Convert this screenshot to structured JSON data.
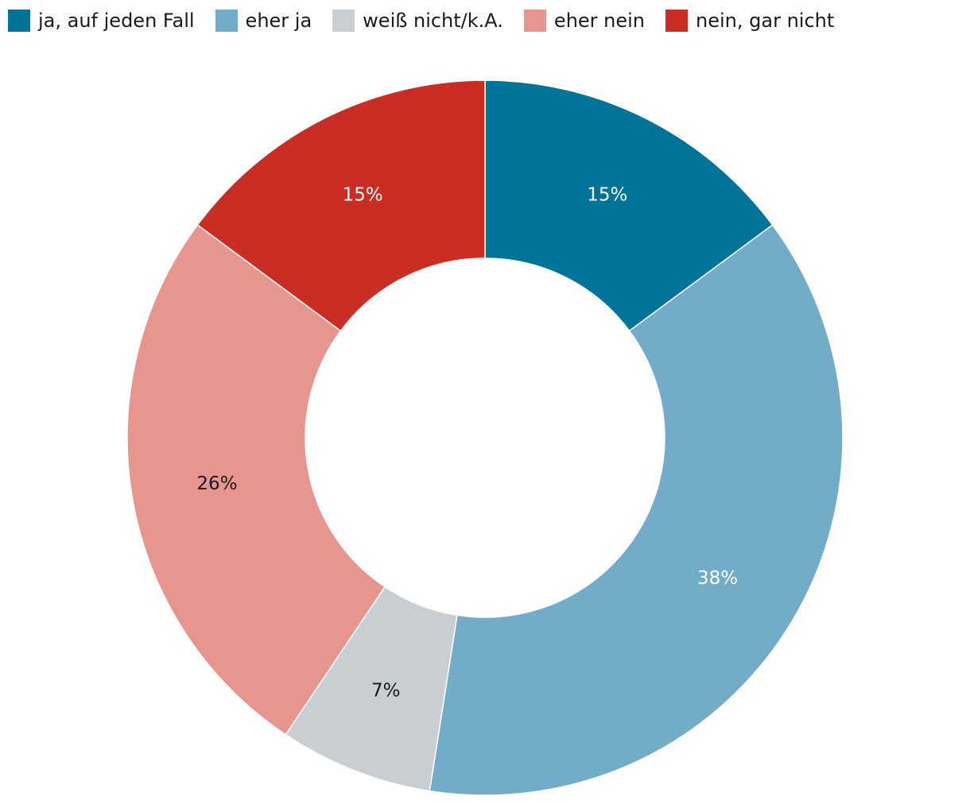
{
  "chart_data": {
    "type": "pie",
    "variant": "donut",
    "title": "",
    "legend_position": "top-left",
    "series": [
      {
        "name": "ja, auf jeden Fall",
        "value": 15,
        "label": "15%",
        "color": "#007398",
        "label_color": "#ffffff"
      },
      {
        "name": "eher ja",
        "value": 38,
        "label": "38%",
        "color": "#73acc9",
        "label_color": "#ffffff"
      },
      {
        "name": "weiß nicht/k.A.",
        "value": 7,
        "label": "7%",
        "color": "#c9ced2",
        "label_color": "#1a1a1a"
      },
      {
        "name": "eher nein",
        "value": 26,
        "label": "26%",
        "color": "#e6958f",
        "label_color": "#1a1a1a"
      },
      {
        "name": "nein, gar nicht",
        "value": 15,
        "label": "15%",
        "color": "#c92d23",
        "label_color": "#ffffff"
      }
    ]
  }
}
